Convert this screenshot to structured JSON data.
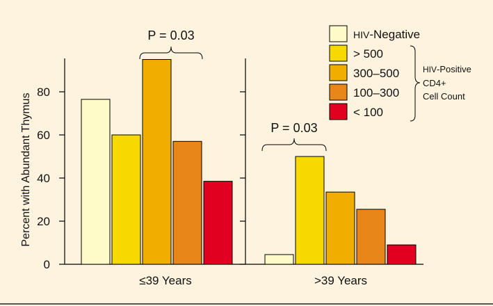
{
  "chart_data": {
    "type": "bar",
    "ylabel": "Percent with Abundant Thymus",
    "ylim": [
      0,
      100
    ],
    "yticks": [
      "0",
      "20",
      "40",
      "60",
      "80"
    ],
    "groups": [
      {
        "label_symbol": "≤",
        "label_text": "39 Years",
        "annotation": "P = 0.03",
        "values": [
          76.5,
          60,
          95,
          57,
          38.5
        ]
      },
      {
        "label_symbol": ">",
        "label_text": "39 Years",
        "annotation": "P = 0.03",
        "values": [
          4.5,
          50,
          33.5,
          25.5,
          9
        ]
      }
    ],
    "series": [
      {
        "name_prefix": "HIV",
        "name": "-Negative",
        "color": "#fffbc8"
      },
      {
        "name": "> 500",
        "color": "#f7d800"
      },
      {
        "name": "300–500",
        "color": "#f2ae00"
      },
      {
        "name": "100–300",
        "color": "#e8861a"
      },
      {
        "name": "< 100",
        "color": "#e1001f"
      }
    ],
    "bracket_label": {
      "prefix": "HIV",
      "line1_suffix": "-Positive",
      "line2": "CD4+",
      "line3": "Cell Count"
    }
  },
  "colors": {
    "background": "#fdf3de",
    "axis": "#000000"
  }
}
